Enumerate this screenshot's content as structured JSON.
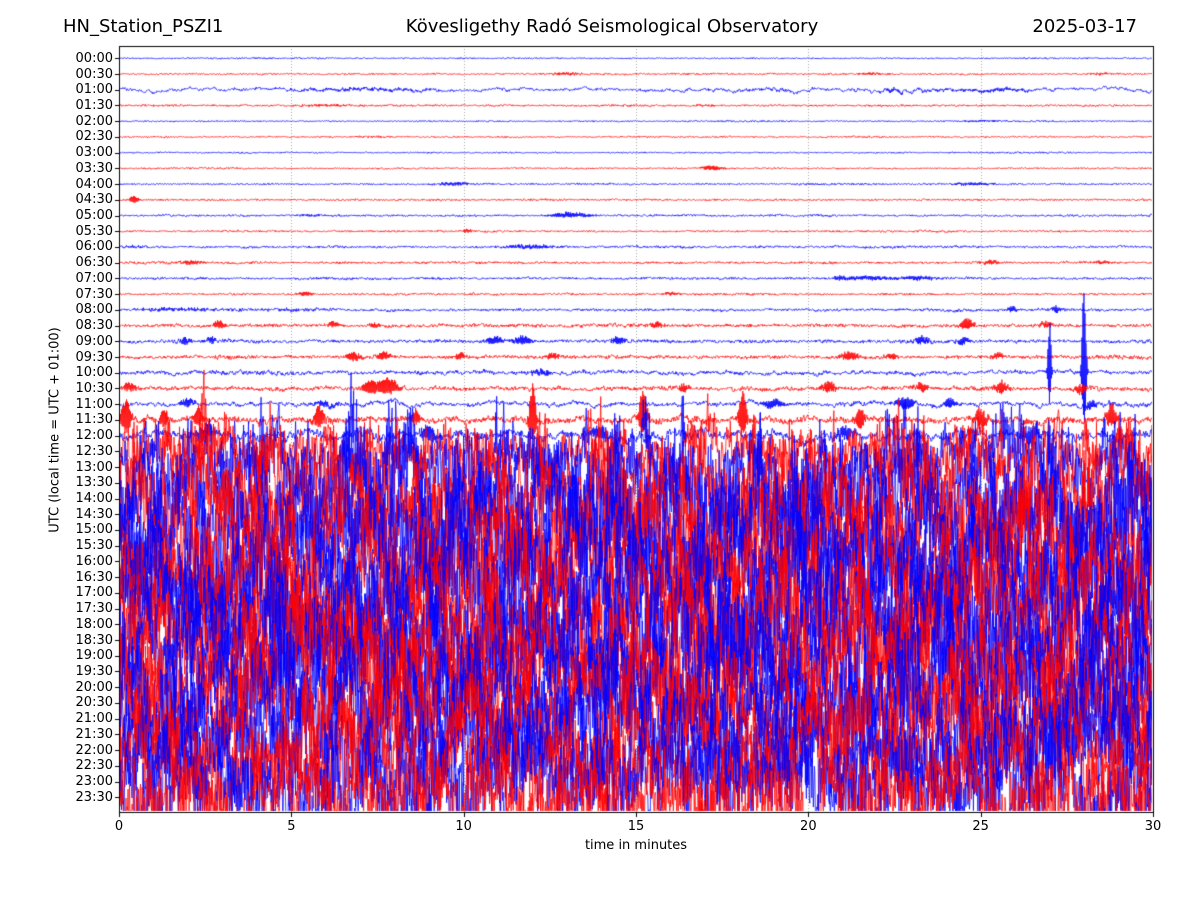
{
  "header": {
    "station": "HN_Station_PSZI1",
    "observatory": "Kövesligethy Radó Seismological Observatory",
    "date": "2025-03-17"
  },
  "chart_data": {
    "type": "line",
    "subtype": "helicorder-seismogram",
    "title": "HN_Station_PSZI1  Kövesligethy Radó Seismological Observatory  2025-03-17",
    "xlabel": "time in minutes",
    "ylabel": "UTC (local time = UTC + 01:00)",
    "xlim": [
      0,
      30
    ],
    "x_ticks": [
      0,
      5,
      10,
      15,
      20,
      25,
      30
    ],
    "x_gridlines": [
      5,
      10,
      15,
      20,
      25
    ],
    "grid_on": true,
    "colors": {
      "even_trace": "#0000ff",
      "odd_trace": "#ff0000",
      "grid": "#aaaaaa",
      "axis": "#000000"
    },
    "minutes_per_row": 30,
    "rows": [
      {
        "label": "00:00",
        "color": "#0000ff",
        "amp": 0.5,
        "s": 0.15,
        "ev": []
      },
      {
        "label": "00:30",
        "color": "#ff0000",
        "amp": 0.6,
        "s": 0.2,
        "ev": [
          [
            13,
            0.5,
            1.3
          ],
          [
            21.8,
            0.4,
            1.2
          ],
          [
            28.5,
            0.3,
            1
          ]
        ]
      },
      {
        "label": "01:00",
        "color": "#0000ff",
        "amp": 1.6,
        "s": 0.65,
        "ev": [
          [
            7,
            2,
            1.2
          ],
          [
            25.3,
            1.5,
            1.2
          ],
          [
            22.5,
            0.3,
            1.5
          ]
        ]
      },
      {
        "label": "01:30",
        "color": "#ff0000",
        "amp": 0.7,
        "s": 0.25,
        "ev": [
          [
            6,
            1,
            0.8
          ],
          [
            17,
            0.5,
            0.7
          ]
        ]
      },
      {
        "label": "02:00",
        "color": "#0000ff",
        "amp": 0.5,
        "s": 0.15,
        "ev": [
          [
            25,
            0.8,
            0.7
          ]
        ]
      },
      {
        "label": "02:30",
        "color": "#ff0000",
        "amp": 0.55,
        "s": 0.2,
        "ev": [
          [
            7.5,
            0.5,
            0.7
          ]
        ]
      },
      {
        "label": "03:00",
        "color": "#0000ff",
        "amp": 0.5,
        "s": 0.15,
        "ev": []
      },
      {
        "label": "03:30",
        "color": "#ff0000",
        "amp": 0.55,
        "s": 0.2,
        "ev": [
          [
            17.2,
            0.3,
            2.6
          ]
        ]
      },
      {
        "label": "04:00",
        "color": "#0000ff",
        "amp": 0.6,
        "s": 0.2,
        "ev": [
          [
            9.7,
            0.5,
            1.7
          ],
          [
            24.8,
            0.6,
            1.5
          ]
        ]
      },
      {
        "label": "04:30",
        "color": "#ff0000",
        "amp": 0.65,
        "s": 0.2,
        "ev": [
          [
            0.45,
            0.12,
            4.5
          ]
        ]
      },
      {
        "label": "05:00",
        "color": "#0000ff",
        "amp": 0.7,
        "s": 0.25,
        "ev": [
          [
            13.1,
            0.6,
            2.9
          ],
          [
            5.5,
            0.3,
            0.9
          ]
        ]
      },
      {
        "label": "05:30",
        "color": "#ff0000",
        "amp": 0.65,
        "s": 0.2,
        "ev": [
          [
            10.1,
            0.15,
            2.2
          ]
        ]
      },
      {
        "label": "06:00",
        "color": "#0000ff",
        "amp": 0.8,
        "s": 0.3,
        "ev": [
          [
            11.9,
            0.8,
            1.9
          ],
          [
            0.5,
            0.5,
            0.9
          ]
        ]
      },
      {
        "label": "06:30",
        "color": "#ff0000",
        "amp": 0.8,
        "s": 0.25,
        "ev": [
          [
            2.1,
            0.3,
            2.3
          ],
          [
            25.3,
            0.25,
            2.3
          ],
          [
            28.5,
            0.3,
            1.6
          ]
        ]
      },
      {
        "label": "07:00",
        "color": "#0000ff",
        "amp": 0.8,
        "s": 0.25,
        "ev": [
          [
            21.7,
            0.8,
            2
          ],
          [
            23.2,
            0.5,
            2.3
          ],
          [
            20.9,
            0.2,
            1.5
          ]
        ]
      },
      {
        "label": "07:30",
        "color": "#ff0000",
        "amp": 0.7,
        "s": 0.2,
        "ev": [
          [
            5.4,
            0.2,
            2.3
          ],
          [
            16,
            0.25,
            1.5
          ]
        ]
      },
      {
        "label": "08:00",
        "color": "#0000ff",
        "amp": 1.0,
        "s": 0.35,
        "ev": [
          [
            1.7,
            1.2,
            1.4
          ],
          [
            4.9,
            0.5,
            1.2
          ],
          [
            25.9,
            0.15,
            3
          ],
          [
            27.2,
            0.15,
            3.5
          ]
        ]
      },
      {
        "label": "08:30",
        "color": "#ff0000",
        "amp": 1.2,
        "s": 0.3,
        "ev": [
          [
            2.9,
            0.15,
            4.5
          ],
          [
            6.2,
            0.15,
            3.5
          ],
          [
            7.4,
            0.15,
            3
          ],
          [
            15.6,
            0.2,
            3.5
          ],
          [
            24.6,
            0.2,
            7
          ],
          [
            26.9,
            0.2,
            3
          ]
        ]
      },
      {
        "label": "09:00",
        "color": "#0000ff",
        "amp": 1.2,
        "s": 0.3,
        "ev": [
          [
            1.9,
            0.15,
            4.5
          ],
          [
            2.7,
            0.15,
            3.5
          ],
          [
            10.9,
            0.25,
            4.5
          ],
          [
            11.7,
            0.25,
            4.5
          ],
          [
            14.5,
            0.2,
            4.5
          ],
          [
            23.3,
            0.2,
            4.5
          ],
          [
            24.5,
            0.2,
            3.5
          ]
        ]
      },
      {
        "label": "09:30",
        "color": "#ff0000",
        "amp": 1.2,
        "s": 0.3,
        "ev": [
          [
            6.8,
            0.2,
            5
          ],
          [
            7.7,
            0.2,
            4.5
          ],
          [
            9.9,
            0.2,
            3.5
          ],
          [
            12.6,
            0.2,
            3.5
          ],
          [
            21.2,
            0.3,
            4.5
          ],
          [
            22.4,
            0.2,
            3.5
          ],
          [
            25.5,
            0.2,
            3.5
          ]
        ]
      },
      {
        "label": "10:00",
        "color": "#0000ff",
        "amp": 1.6,
        "s": 0.5,
        "ev": [
          [
            12.2,
            0.4,
            2.5
          ],
          [
            27,
            0.05,
            55
          ],
          [
            28,
            0.06,
            100
          ]
        ]
      },
      {
        "label": "10:30",
        "color": "#ff0000",
        "amp": 1.6,
        "s": 0.4,
        "ev": [
          [
            0.3,
            0.2,
            5
          ],
          [
            7.3,
            0.2,
            8
          ],
          [
            7.8,
            0.3,
            10
          ],
          [
            16.4,
            0.15,
            5
          ],
          [
            20.6,
            0.2,
            6
          ],
          [
            23.3,
            0.2,
            5
          ],
          [
            25.6,
            0.2,
            7
          ],
          [
            27.9,
            0.15,
            6
          ]
        ]
      },
      {
        "label": "11:00",
        "color": "#0000ff",
        "amp": 2.0,
        "s": 0.6,
        "ev": [
          [
            2,
            0.2,
            5
          ],
          [
            6,
            0.3,
            3
          ],
          [
            19,
            0.3,
            5
          ],
          [
            22.8,
            0.25,
            7
          ],
          [
            24.1,
            0.2,
            6
          ],
          [
            28.2,
            0.2,
            5
          ]
        ]
      },
      {
        "label": "11:30",
        "color": "#ff0000",
        "amp": 2.6,
        "s": 0.45,
        "ev": [
          [
            0.2,
            0.15,
            22
          ],
          [
            1.3,
            0.1,
            12
          ],
          [
            2.3,
            0.1,
            14
          ],
          [
            5.8,
            0.15,
            14
          ],
          [
            8.6,
            0.12,
            10
          ],
          [
            12,
            0.1,
            36
          ],
          [
            15.2,
            0.12,
            28
          ],
          [
            18.1,
            0.12,
            26
          ],
          [
            21.5,
            0.15,
            12
          ],
          [
            25,
            0.2,
            10
          ],
          [
            28.8,
            0.15,
            14
          ]
        ]
      },
      {
        "label": "12:00",
        "color": "#0000ff",
        "amp": 4.0,
        "s": 0.6,
        "ev": [
          [
            2.5,
            0.3,
            10
          ],
          [
            9,
            0.3,
            8
          ],
          [
            14,
            0.3,
            8
          ],
          [
            21,
            0.3,
            8
          ],
          [
            26.5,
            0.3,
            10
          ]
        ]
      },
      {
        "label": "12:30",
        "color": "#ff0000",
        "amp": 18,
        "s": 0.5,
        "ev": []
      },
      {
        "label": "13:00",
        "color": "#0000ff",
        "amp": 33,
        "s": 0.5,
        "ev": []
      },
      {
        "label": "13:30",
        "color": "#ff0000",
        "amp": 40,
        "s": 0.55,
        "ev": []
      },
      {
        "label": "14:00",
        "color": "#0000ff",
        "amp": 42,
        "s": 0.5,
        "ev": []
      },
      {
        "label": "14:30",
        "color": "#ff0000",
        "amp": 44,
        "s": 0.55,
        "ev": []
      },
      {
        "label": "15:00",
        "color": "#0000ff",
        "amp": 44,
        "s": 0.5,
        "ev": []
      },
      {
        "label": "15:30",
        "color": "#ff0000",
        "amp": 44,
        "s": 0.55,
        "ev": []
      },
      {
        "label": "16:00",
        "color": "#0000ff",
        "amp": 46,
        "s": 0.5,
        "ev": []
      },
      {
        "label": "16:30",
        "color": "#ff0000",
        "amp": 44,
        "s": 0.55,
        "ev": []
      },
      {
        "label": "17:00",
        "color": "#0000ff",
        "amp": 46,
        "s": 0.5,
        "ev": []
      },
      {
        "label": "17:30",
        "color": "#ff0000",
        "amp": 46,
        "s": 0.55,
        "ev": []
      },
      {
        "label": "18:00",
        "color": "#0000ff",
        "amp": 46,
        "s": 0.5,
        "ev": []
      },
      {
        "label": "18:30",
        "color": "#ff0000",
        "amp": 44,
        "s": 0.55,
        "ev": []
      },
      {
        "label": "19:00",
        "color": "#0000ff",
        "amp": 44,
        "s": 0.5,
        "ev": []
      },
      {
        "label": "19:30",
        "color": "#ff0000",
        "amp": 44,
        "s": 0.55,
        "ev": []
      },
      {
        "label": "20:00",
        "color": "#0000ff",
        "amp": 44,
        "s": 0.5,
        "ev": []
      },
      {
        "label": "20:30",
        "color": "#ff0000",
        "amp": 42,
        "s": 0.55,
        "ev": []
      },
      {
        "label": "21:00",
        "color": "#0000ff",
        "amp": 44,
        "s": 0.5,
        "ev": []
      },
      {
        "label": "21:30",
        "color": "#ff0000",
        "amp": 42,
        "s": 0.55,
        "ev": []
      },
      {
        "label": "22:00",
        "color": "#0000ff",
        "amp": 42,
        "s": 0.5,
        "ev": []
      },
      {
        "label": "22:30",
        "color": "#ff0000",
        "amp": 40,
        "s": 0.55,
        "ev": []
      },
      {
        "label": "23:00",
        "color": "#0000ff",
        "amp": 40,
        "s": 0.5,
        "ev": []
      },
      {
        "label": "23:30",
        "color": "#ff0000",
        "amp": 34,
        "s": 0.5,
        "ev": []
      }
    ]
  }
}
